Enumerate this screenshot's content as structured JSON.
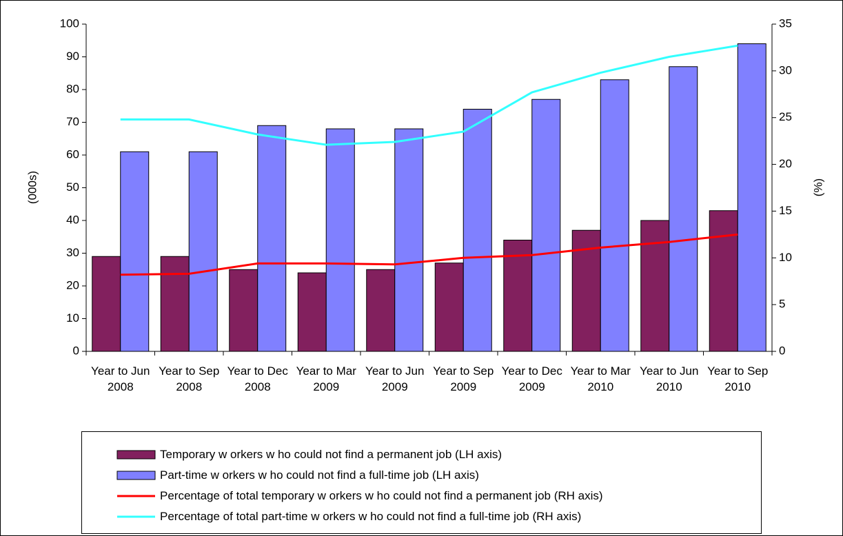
{
  "chart_data": {
    "type": "bar-line",
    "ylabel": "(000s)",
    "y2label": "(%)",
    "categories": [
      "Year to Jun 2008",
      "Year to Sep 2008",
      "Year to Dec 2008",
      "Year to Mar 2009",
      "Year to Jun 2009",
      "Year to Sep 2009",
      "Year to Dec 2009",
      "Year to Mar 2010",
      "Year to Jun 2010",
      "Year to Sep 2010"
    ],
    "series": [
      {
        "name": "Temporary w orkers w ho could not find a permanent job (LH axis)",
        "type": "bar",
        "color": "#82205e",
        "values": [
          29,
          29,
          25,
          24,
          25,
          27,
          34,
          37,
          40,
          43
        ]
      },
      {
        "name": "Part-time w orkers w ho could not find a full-time job (LH axis)",
        "type": "bar",
        "color": "#8080ff",
        "values": [
          61,
          61,
          69,
          68,
          68,
          74,
          77,
          83,
          87,
          94
        ]
      },
      {
        "name": "Percentage of total temporary w orkers w ho could not find a permanent job (RH axis)",
        "type": "line",
        "axis": "y2",
        "color": "#ff0000",
        "values": [
          8.2,
          8.3,
          9.4,
          9.4,
          9.3,
          10.0,
          10.3,
          11.1,
          11.7,
          12.5
        ]
      },
      {
        "name": "Percentage of total part-time w orkers w ho could not find a full-time job (RH axis)",
        "type": "line",
        "axis": "y2",
        "color": "#33ffff",
        "values": [
          24.8,
          24.8,
          23.2,
          22.1,
          22.4,
          23.5,
          27.7,
          29.8,
          31.5,
          32.7
        ]
      }
    ],
    "ylim": [
      0,
      100
    ],
    "yticks": [
      0,
      10,
      20,
      30,
      40,
      50,
      60,
      70,
      80,
      90,
      100
    ],
    "y2lim": [
      0,
      35
    ],
    "y2ticks": [
      0,
      5,
      10,
      15,
      20,
      25,
      30,
      35
    ],
    "grid": false
  }
}
